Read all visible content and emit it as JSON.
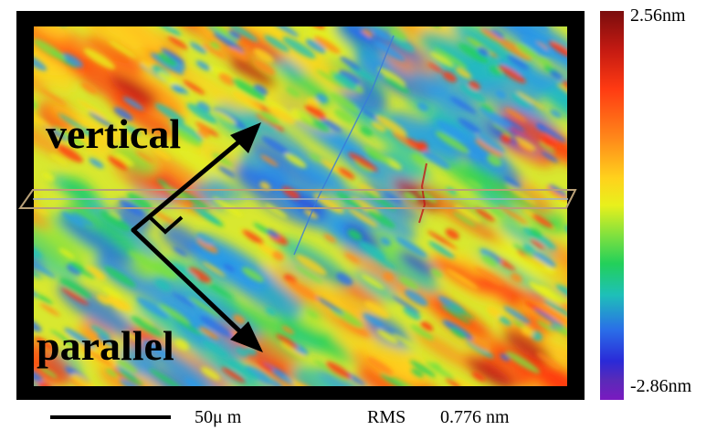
{
  "colorbar": {
    "max_label": "2.56nm",
    "min_label": "-2.86nm",
    "colors": [
      "#7a0d0d",
      "#ff3a12",
      "#ffd21c",
      "#22d05a",
      "#2a6ee8",
      "#7a1ac0"
    ]
  },
  "annotations": {
    "vertical": "vertical",
    "parallel": "parallel"
  },
  "footer": {
    "scale": "50μ m",
    "rms_label": "RMS",
    "rms_value": "0.776 nm"
  }
}
